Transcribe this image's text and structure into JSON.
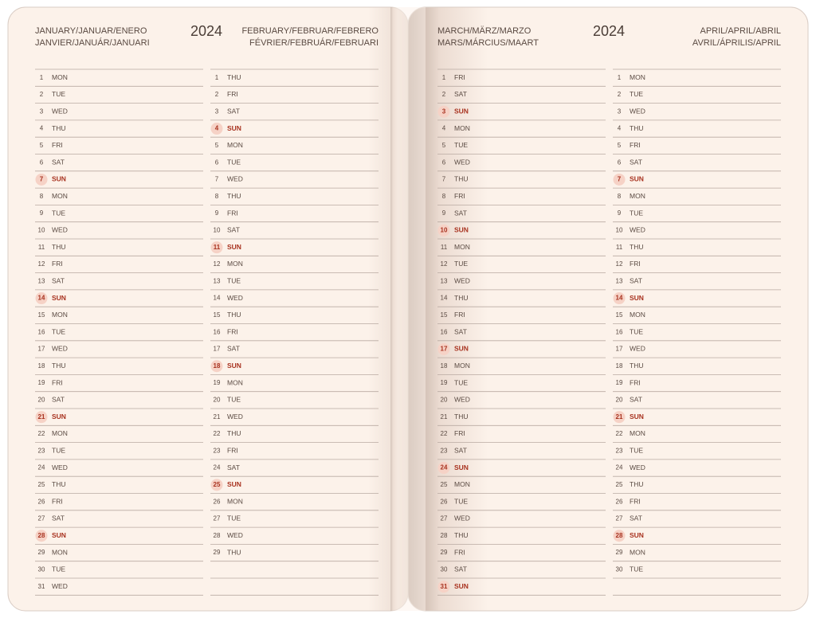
{
  "pages": [
    {
      "year": "2024",
      "months": [
        {
          "title_lines": [
            "JANUARY/JANUAR/ENERO",
            "JANVIER/JANUÁR/JANUARI"
          ],
          "days": [
            [
              1,
              "MON"
            ],
            [
              2,
              "TUE"
            ],
            [
              3,
              "WED"
            ],
            [
              4,
              "THU"
            ],
            [
              5,
              "FRI"
            ],
            [
              6,
              "SAT"
            ],
            [
              7,
              "SUN",
              true
            ],
            [
              8,
              "MON"
            ],
            [
              9,
              "TUE"
            ],
            [
              10,
              "WED"
            ],
            [
              11,
              "THU"
            ],
            [
              12,
              "FRI"
            ],
            [
              13,
              "SAT"
            ],
            [
              14,
              "SUN",
              true
            ],
            [
              15,
              "MON"
            ],
            [
              16,
              "TUE"
            ],
            [
              17,
              "WED"
            ],
            [
              18,
              "THU"
            ],
            [
              19,
              "FRI"
            ],
            [
              20,
              "SAT"
            ],
            [
              21,
              "SUN",
              true
            ],
            [
              22,
              "MON"
            ],
            [
              23,
              "TUE"
            ],
            [
              24,
              "WED"
            ],
            [
              25,
              "THU"
            ],
            [
              26,
              "FRI"
            ],
            [
              27,
              "SAT"
            ],
            [
              28,
              "SUN",
              true
            ],
            [
              29,
              "MON"
            ],
            [
              30,
              "TUE"
            ],
            [
              31,
              "WED"
            ]
          ]
        },
        {
          "title_lines": [
            "FEBRUARY/FEBRUAR/FEBRERO",
            "FÉVRIER/FEBRUÁR/FEBRUARI"
          ],
          "days": [
            [
              1,
              "THU"
            ],
            [
              2,
              "FRI"
            ],
            [
              3,
              "SAT"
            ],
            [
              4,
              "SUN",
              true
            ],
            [
              5,
              "MON"
            ],
            [
              6,
              "TUE"
            ],
            [
              7,
              "WED"
            ],
            [
              8,
              "THU"
            ],
            [
              9,
              "FRI"
            ],
            [
              10,
              "SAT"
            ],
            [
              11,
              "SUN",
              true
            ],
            [
              12,
              "MON"
            ],
            [
              13,
              "TUE"
            ],
            [
              14,
              "WED"
            ],
            [
              15,
              "THU"
            ],
            [
              16,
              "FRI"
            ],
            [
              17,
              "SAT"
            ],
            [
              18,
              "SUN",
              true
            ],
            [
              19,
              "MON"
            ],
            [
              20,
              "TUE"
            ],
            [
              21,
              "WED"
            ],
            [
              22,
              "THU"
            ],
            [
              23,
              "FRI"
            ],
            [
              24,
              "SAT"
            ],
            [
              25,
              "SUN",
              true
            ],
            [
              26,
              "MON"
            ],
            [
              27,
              "TUE"
            ],
            [
              28,
              "WED"
            ],
            [
              29,
              "THU"
            ]
          ]
        }
      ]
    },
    {
      "year": "2024",
      "months": [
        {
          "title_lines": [
            "MARCH/MÄRZ/MARZO",
            "MARS/MÁRCIUS/MAART"
          ],
          "days": [
            [
              1,
              "FRI"
            ],
            [
              2,
              "SAT"
            ],
            [
              3,
              "SUN",
              true
            ],
            [
              4,
              "MON"
            ],
            [
              5,
              "TUE"
            ],
            [
              6,
              "WED"
            ],
            [
              7,
              "THU"
            ],
            [
              8,
              "FRI"
            ],
            [
              9,
              "SAT"
            ],
            [
              10,
              "SUN",
              true
            ],
            [
              11,
              "MON"
            ],
            [
              12,
              "TUE"
            ],
            [
              13,
              "WED"
            ],
            [
              14,
              "THU"
            ],
            [
              15,
              "FRI"
            ],
            [
              16,
              "SAT"
            ],
            [
              17,
              "SUN",
              true
            ],
            [
              18,
              "MON"
            ],
            [
              19,
              "TUE"
            ],
            [
              20,
              "WED"
            ],
            [
              21,
              "THU"
            ],
            [
              22,
              "FRI"
            ],
            [
              23,
              "SAT"
            ],
            [
              24,
              "SUN",
              true
            ],
            [
              25,
              "MON"
            ],
            [
              26,
              "TUE"
            ],
            [
              27,
              "WED"
            ],
            [
              28,
              "THU"
            ],
            [
              29,
              "FRI"
            ],
            [
              30,
              "SAT"
            ],
            [
              31,
              "SUN",
              true
            ]
          ]
        },
        {
          "title_lines": [
            "APRIL/APRIL/ABRIL",
            "AVRIL/ÁPRILIS/APRIL"
          ],
          "days": [
            [
              1,
              "MON"
            ],
            [
              2,
              "TUE"
            ],
            [
              3,
              "WED"
            ],
            [
              4,
              "THU"
            ],
            [
              5,
              "FRI"
            ],
            [
              6,
              "SAT"
            ],
            [
              7,
              "SUN",
              true
            ],
            [
              8,
              "MON"
            ],
            [
              9,
              "TUE"
            ],
            [
              10,
              "WED"
            ],
            [
              11,
              "THU"
            ],
            [
              12,
              "FRI"
            ],
            [
              13,
              "SAT"
            ],
            [
              14,
              "SUN",
              true
            ],
            [
              15,
              "MON"
            ],
            [
              16,
              "TUE"
            ],
            [
              17,
              "WED"
            ],
            [
              18,
              "THU"
            ],
            [
              19,
              "FRI"
            ],
            [
              20,
              "SAT"
            ],
            [
              21,
              "SUN",
              true
            ],
            [
              22,
              "MON"
            ],
            [
              23,
              "TUE"
            ],
            [
              24,
              "WED"
            ],
            [
              25,
              "THU"
            ],
            [
              26,
              "FRI"
            ],
            [
              27,
              "SAT"
            ],
            [
              28,
              "SUN",
              true
            ],
            [
              29,
              "MON"
            ],
            [
              30,
              "TUE"
            ]
          ]
        }
      ]
    }
  ]
}
